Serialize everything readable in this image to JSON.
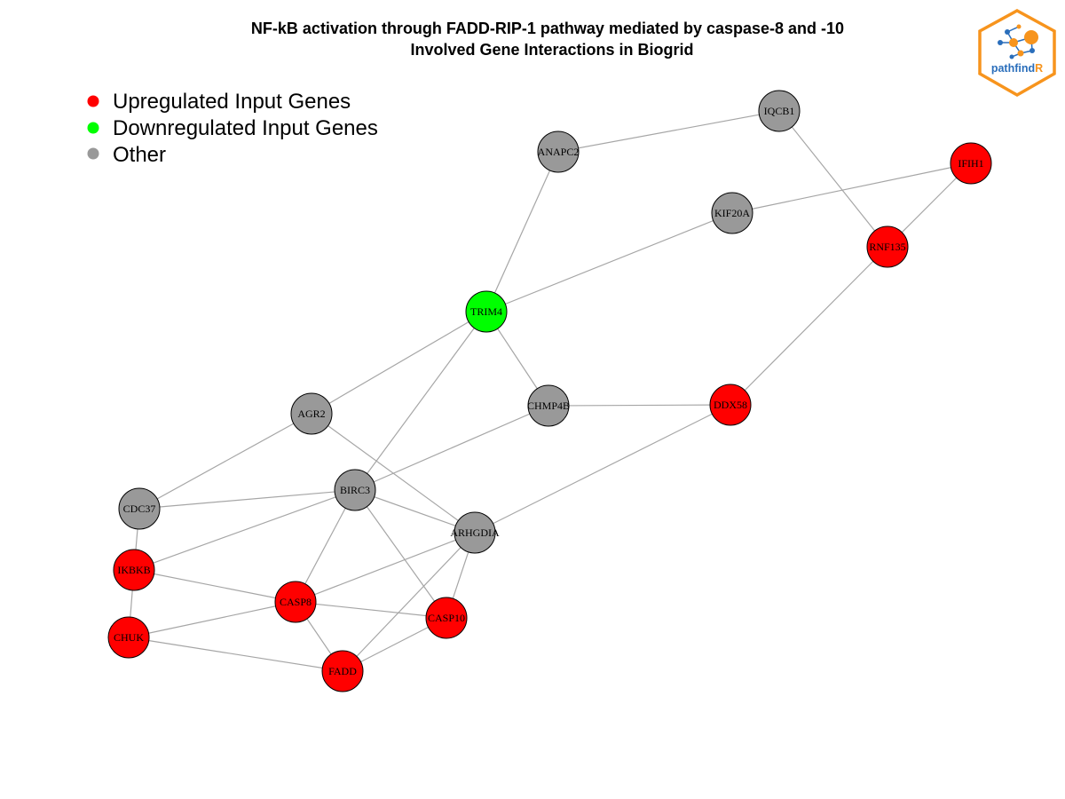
{
  "title": {
    "line1": "NF-kB activation through FADD-RIP-1 pathway mediated by caspase-8 and -10",
    "line2": "Involved Gene Interactions in Biogrid"
  },
  "legend": [
    {
      "label": "Upregulated Input Genes",
      "color": "#ff0000"
    },
    {
      "label": "Downregulated Input Genes",
      "color": "#00ff00"
    },
    {
      "label": "Other",
      "color": "#999999"
    }
  ],
  "colors": {
    "up": "#ff0000",
    "down": "#00ff00",
    "other": "#999999",
    "edge": "#a6a6a6",
    "logo_orange": "#f7941d",
    "logo_blue": "#2a6ebb"
  },
  "logo": {
    "text_main": "pathfind",
    "text_accent": "R"
  },
  "network": {
    "nodes": [
      {
        "id": "IQCB1",
        "status": "other"
      },
      {
        "id": "ANAPC2",
        "status": "other"
      },
      {
        "id": "IFIH1",
        "status": "up"
      },
      {
        "id": "KIF20A",
        "status": "other"
      },
      {
        "id": "RNF135",
        "status": "up"
      },
      {
        "id": "TRIM4",
        "status": "down"
      },
      {
        "id": "CHMP4B",
        "status": "other"
      },
      {
        "id": "DDX58",
        "status": "up"
      },
      {
        "id": "AGR2",
        "status": "other"
      },
      {
        "id": "BIRC3",
        "status": "other"
      },
      {
        "id": "CDC37",
        "status": "other"
      },
      {
        "id": "ARHGDIA",
        "status": "other"
      },
      {
        "id": "IKBKB",
        "status": "up"
      },
      {
        "id": "CASP8",
        "status": "up"
      },
      {
        "id": "CASP10",
        "status": "up"
      },
      {
        "id": "CHUK",
        "status": "up"
      },
      {
        "id": "FADD",
        "status": "up"
      }
    ],
    "edges": [
      [
        "ANAPC2",
        "IQCB1"
      ],
      [
        "IQCB1",
        "RNF135"
      ],
      [
        "KIF20A",
        "IFIH1"
      ],
      [
        "IFIH1",
        "RNF135"
      ],
      [
        "ANAPC2",
        "TRIM4"
      ],
      [
        "TRIM4",
        "KIF20A"
      ],
      [
        "RNF135",
        "DDX58"
      ],
      [
        "TRIM4",
        "CHMP4B"
      ],
      [
        "TRIM4",
        "AGR2"
      ],
      [
        "TRIM4",
        "BIRC3"
      ],
      [
        "CHMP4B",
        "DDX58"
      ],
      [
        "CHMP4B",
        "BIRC3"
      ],
      [
        "DDX58",
        "ARHGDIA"
      ],
      [
        "AGR2",
        "CDC37"
      ],
      [
        "AGR2",
        "ARHGDIA"
      ],
      [
        "CDC37",
        "BIRC3"
      ],
      [
        "CDC37",
        "IKBKB"
      ],
      [
        "BIRC3",
        "IKBKB"
      ],
      [
        "BIRC3",
        "ARHGDIA"
      ],
      [
        "BIRC3",
        "CASP8"
      ],
      [
        "BIRC3",
        "CASP10"
      ],
      [
        "ARHGDIA",
        "CASP8"
      ],
      [
        "ARHGDIA",
        "CASP10"
      ],
      [
        "ARHGDIA",
        "FADD"
      ],
      [
        "IKBKB",
        "CHUK"
      ],
      [
        "IKBKB",
        "CASP8"
      ],
      [
        "CASP8",
        "CHUK"
      ],
      [
        "CASP8",
        "CASP10"
      ],
      [
        "CASP8",
        "FADD"
      ],
      [
        "CHUK",
        "FADD"
      ],
      [
        "CASP10",
        "FADD"
      ]
    ]
  }
}
